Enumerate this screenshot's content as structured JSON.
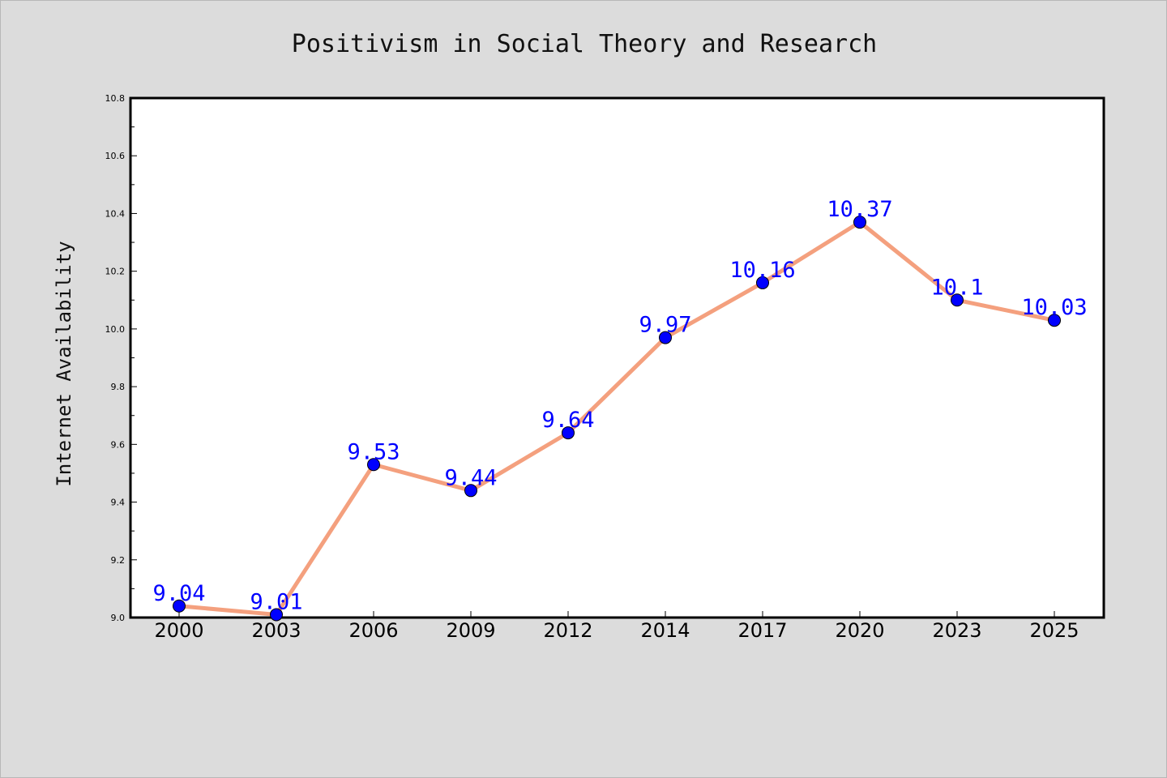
{
  "chart_data": {
    "type": "line",
    "title": "Positivism in Social Theory and Research",
    "xlabel": "",
    "ylabel": "Internet Availability",
    "categories": [
      "2000",
      "2003",
      "2006",
      "2009",
      "2012",
      "2014",
      "2017",
      "2020",
      "2023",
      "2025"
    ],
    "series": [
      {
        "values": [
          9.04,
          9.01,
          9.53,
          9.44,
          9.64,
          9.97,
          10.16,
          10.37,
          10.1,
          10.03
        ]
      }
    ],
    "data_labels": [
      "9.04",
      "9.01",
      "9.53",
      "9.44",
      "9.64",
      "9.97",
      "10.16",
      "10.37",
      "10.1",
      "10.03"
    ],
    "ylim": [
      9.0,
      10.8
    ],
    "yticks": [
      "9.0",
      "9.2",
      "9.4",
      "9.6",
      "9.8",
      "10.0",
      "10.2",
      "10.4",
      "10.6",
      "10.8"
    ],
    "grid": false,
    "legend": "none",
    "colors": {
      "background": "#dcdcdc",
      "plot_background": "#ffffff",
      "line": "#f4a07e",
      "marker": "#0000ff",
      "data_label": "#0000ff"
    }
  }
}
